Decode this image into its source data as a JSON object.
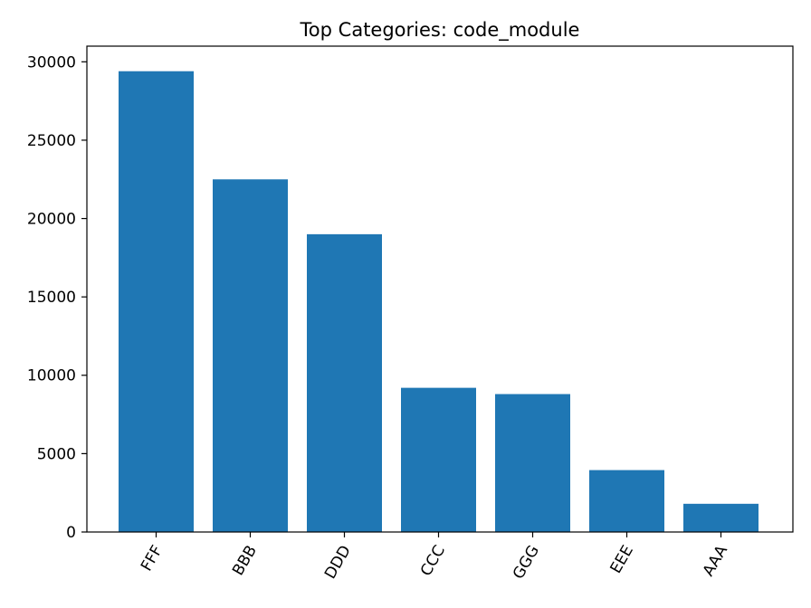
{
  "chart_data": {
    "type": "bar",
    "title": "Top Categories: code_module",
    "xlabel": "",
    "ylabel": "",
    "categories": [
      "FFF",
      "BBB",
      "DDD",
      "CCC",
      "GGG",
      "EEE",
      "AAA"
    ],
    "values": [
      29400,
      22500,
      19000,
      9200,
      8800,
      3950,
      1800
    ],
    "ylim": [
      0,
      31000
    ],
    "yticks": [
      0,
      5000,
      10000,
      15000,
      20000,
      25000,
      30000
    ],
    "bar_color": "#1f77b4",
    "grid": false,
    "legend": "none"
  }
}
